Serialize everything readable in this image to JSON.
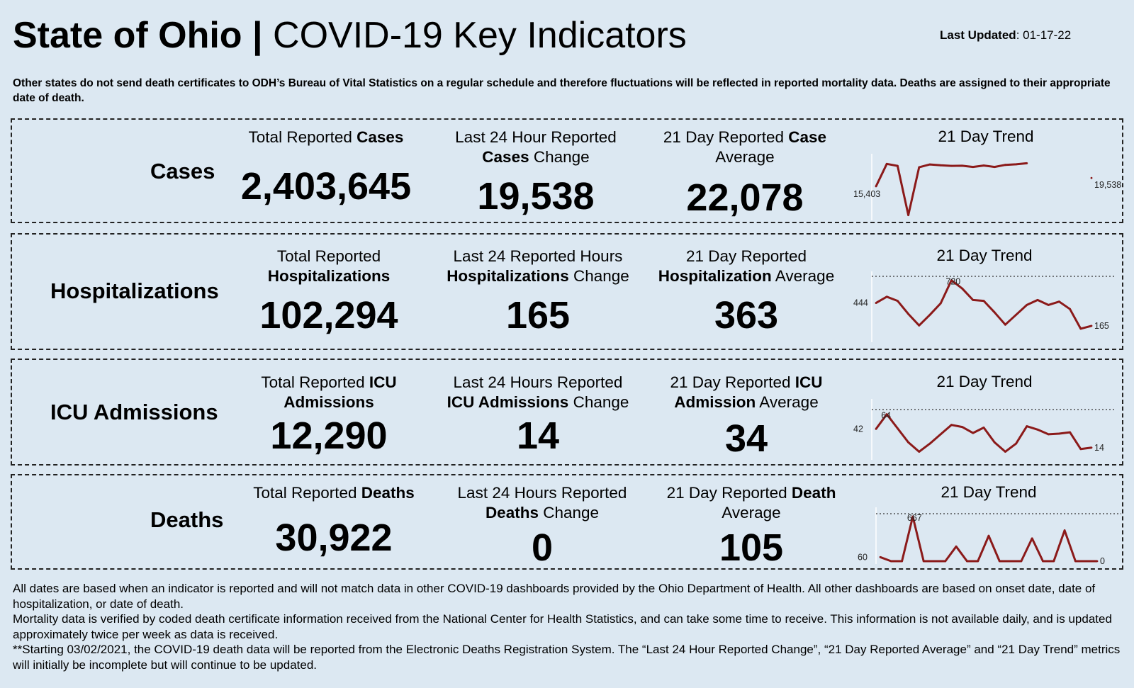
{
  "header": {
    "title_bold": "State of Ohio |",
    "title_rest": "COVID-19  Key Indicators",
    "updated_label": "Last Updated",
    "updated_value": ": 01-17-22"
  },
  "note": "Other states do not send death certificates to ODH’s Bureau of Vital Statistics on a regular schedule and therefore fluctuations will be reflected in reported mortality data. Deaths are assigned to their appropriate date of death.",
  "rows": [
    {
      "label": "Cases",
      "total": {
        "pre": "Total Reported ",
        "bold": "Cases",
        "post": "",
        "value": "2,403,645"
      },
      "change": {
        "line1_pre": "Last 24 Hour Reported",
        "line1_bold": "",
        "line2_bold": "Cases",
        "line2_post": " Change",
        "value": "19,538"
      },
      "average": {
        "line1_pre": "21 Day Reported ",
        "line1_bold": "Case",
        "line2_bold": "",
        "line2_post": "Average",
        "value": "22,078"
      },
      "trend_title": "21 Day Trend"
    },
    {
      "label": "Hospitalizations",
      "total": {
        "line1": "Total Reported",
        "line2_bold": "Hospitalizations",
        "value": "102,294"
      },
      "change": {
        "line1_pre": "Last 24 Reported Hours",
        "line2_bold": "Hospitalizations",
        "line2_post": " Change",
        "value": "165"
      },
      "average": {
        "line1_pre": "21 Day Reported",
        "line2_bold": "Hospitalization",
        "line2_post": " Average",
        "value": "363"
      },
      "trend_title": "21 Day Trend"
    },
    {
      "label": "ICU Admissions",
      "total": {
        "line1_pre": "Total Reported ",
        "line1_bold": "ICU",
        "line2_bold": "Admissions",
        "value": "12,290"
      },
      "change": {
        "line1_pre": "Last 24 Hours Reported",
        "line2_bold": "ICU Admissions",
        "line2_post": " Change",
        "value": "14"
      },
      "average": {
        "line1_pre": "21 Day Reported ",
        "line1_bold": "ICU",
        "line2_bold": "Admission",
        "line2_post": " Average",
        "value": "34"
      },
      "trend_title": "21 Day Trend"
    },
    {
      "label": "Deaths",
      "total": {
        "pre": "Total Reported ",
        "bold": "Deaths",
        "value": "30,922"
      },
      "change": {
        "line1_pre": "Last 24 Hours Reported",
        "line2_bold": "Deaths",
        "line2_post": " Change",
        "value": "0"
      },
      "average": {
        "line1_pre": "21 Day Reported ",
        "line1_bold": "Death",
        "line2_post": "Average",
        "value": "105"
      },
      "trend_title": "21 Day Trend"
    }
  ],
  "footer": [
    "All dates are based when an indicator is reported and will not match data in other COVID-19 dashboards provided by the Ohio Department of Health. All other dashboards are based on onset date, date of hospitalization, or date of death.",
    "Mortality data is verified by coded death certificate information received from the National Center for Health Statistics, and can take some time to receive. This information is not available daily, and is updated approximately twice per week as data is received.",
    "**Starting 03/02/2021, the COVID-19 death data will be reported from the Electronic Deaths Registration System. The “Last 24 Hour Reported Change”, “21 Day Reported Average” and “21 Day Trend” metrics will initially be incomplete but will continue to be updated."
  ],
  "colors": {
    "line": "#8b1a1a",
    "background": "#dce8f2"
  },
  "chart_data": [
    {
      "type": "line",
      "title": "Cases 21 Day Trend",
      "x": [
        1,
        2,
        3,
        4,
        5,
        6,
        7,
        8,
        9,
        10,
        11,
        12,
        13,
        14,
        15,
        16,
        17,
        18,
        19,
        20,
        21
      ],
      "values": [
        15403,
        26500,
        25500,
        1200,
        24800,
        26200,
        25800,
        25500,
        25600,
        25000,
        25700,
        25000,
        26000,
        26300,
        26800,
        null,
        null,
        null,
        null,
        null,
        19538
      ],
      "ylim": [
        0,
        28000
      ],
      "start_label": "15,403",
      "end_label": "19,538",
      "peak_label": ""
    },
    {
      "type": "line",
      "title": "Hospitalizations 21 Day Trend",
      "x": [
        1,
        2,
        3,
        4,
        5,
        6,
        7,
        8,
        9,
        10,
        11,
        12,
        13,
        14,
        15,
        16,
        17,
        18,
        19,
        20,
        21
      ],
      "values": [
        444,
        520,
        470,
        310,
        170,
        300,
        440,
        720,
        620,
        480,
        470,
        330,
        180,
        300,
        420,
        480,
        420,
        460,
        370,
        130,
        165
      ],
      "ylim": [
        0,
        760
      ],
      "start_label": "444",
      "end_label": "165",
      "peak_label": "720"
    },
    {
      "type": "line",
      "title": "ICU Admissions 21 Day Trend",
      "x": [
        1,
        2,
        3,
        4,
        5,
        6,
        7,
        8,
        9,
        10,
        11,
        12,
        13,
        14,
        15,
        16,
        17,
        18,
        19,
        20,
        21
      ],
      "values": [
        42,
        64,
        43,
        22,
        8,
        20,
        34,
        48,
        45,
        36,
        44,
        22,
        8,
        20,
        46,
        41,
        34,
        35,
        37,
        12,
        14
      ],
      "ylim": [
        0,
        70
      ],
      "start_label": "42",
      "end_label": "14",
      "peak_label": "64"
    },
    {
      "type": "line",
      "title": "Deaths 21 Day Trend",
      "x": [
        1,
        2,
        3,
        4,
        5,
        6,
        7,
        8,
        9,
        10,
        11,
        12,
        13,
        14,
        15,
        16,
        17,
        18,
        19,
        20,
        21
      ],
      "values": [
        60,
        0,
        0,
        667,
        0,
        0,
        0,
        220,
        0,
        0,
        380,
        0,
        0,
        0,
        340,
        0,
        0,
        460,
        0,
        0,
        0
      ],
      "ylim": [
        0,
        700
      ],
      "start_label": "60",
      "end_label": "0",
      "peak_label": "667"
    }
  ]
}
